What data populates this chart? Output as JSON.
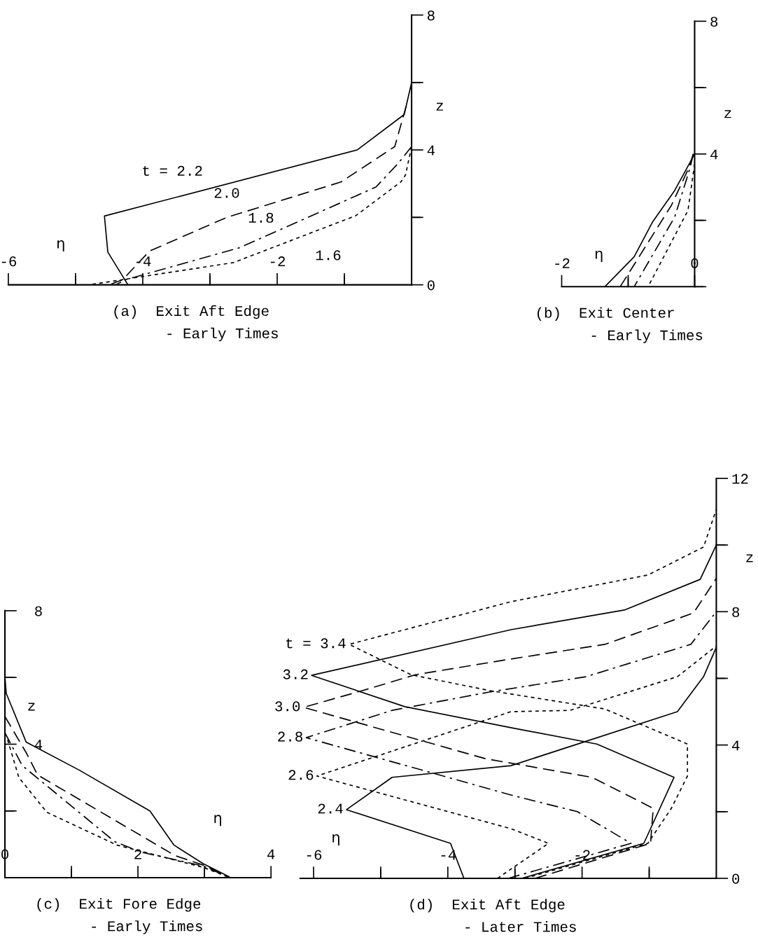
{
  "chart_data": [
    {
      "type": "line",
      "title": "(a)  Exit Aft Edge",
      "subtitle": "- Early Times",
      "xlabel": "η",
      "ylabel": "z",
      "xlim": [
        -6,
        0
      ],
      "xticks": [
        -6,
        {
          "value": -5,
          "label": null
        },
        -4,
        {
          "value": -3,
          "label": null
        },
        -2,
        {
          "value": -1,
          "label": null
        }
      ],
      "ylim": [
        0,
        8
      ],
      "yticks": [
        0,
        {
          "value": 2,
          "label": null
        },
        4,
        {
          "value": 6,
          "label": null
        },
        8
      ],
      "grid": false,
      "legend": false,
      "series": [
        {
          "color": "#000000",
          "line_style": "solid",
          "x": [
            0,
            -0.11,
            -0.81,
            -4.57,
            -4.52,
            -4.22
          ],
          "values": [
            6.0,
            5.05,
            4.0,
            2.04,
            0.97,
            0
          ]
        },
        {
          "color": "#000000",
          "line_style": "dashed",
          "x": [
            -0.08,
            -0.25,
            -1.05,
            -2.75,
            -3.9,
            -4.3,
            -4.5
          ],
          "values": [
            5.3,
            4.1,
            3.05,
            2.0,
            1.0,
            0.15,
            0
          ]
        },
        {
          "color": "#000000",
          "line_style": "dashdot",
          "x": [
            0,
            -0.2,
            -0.53,
            -2.56,
            -4.26,
            -4.4
          ],
          "values": [
            4.1,
            3.6,
            2.9,
            1.1,
            0.15,
            0
          ]
        },
        {
          "color": "#000000",
          "line_style": "dotted",
          "x": [
            0,
            -0.09,
            -0.16,
            -0.83,
            -2.65,
            -4.8
          ],
          "values": [
            4.1,
            3.26,
            3.05,
            2.05,
            0.66,
            0
          ]
        }
      ],
      "annotations": [
        {
          "text": "t = 2.2",
          "x": -3.56,
          "y": 2.57
        },
        {
          "text": "2.0",
          "x": -2.75,
          "y": 2.0
        },
        {
          "text": "1.8",
          "x": -2.24,
          "y": 1.38
        },
        {
          "text": "1.6",
          "x": -1.24,
          "y": 1.74
        }
      ]
    },
    {
      "type": "line",
      "title": "(b)  Exit Center",
      "subtitle": "- Early Times",
      "xlabel": "η",
      "ylabel": "z",
      "xlim": [
        -2,
        0
      ],
      "xticks": [
        -2,
        {
          "value": -1,
          "label": null
        },
        0
      ],
      "ylim": [
        0,
        8
      ],
      "yticks": [
        {
          "value": 0,
          "label": null
        },
        {
          "value": 2,
          "label": null
        },
        4,
        {
          "value": 6,
          "label": null
        },
        8
      ],
      "grid": false,
      "legend": false,
      "series": [
        {
          "color": "#000000",
          "line_style": "solid",
          "x": [
            0,
            -0.3,
            -0.63,
            -0.91,
            -1.35
          ],
          "values": [
            4.0,
            2.9,
            1.96,
            0.9,
            0
          ]
        },
        {
          "color": "#000000",
          "line_style": "dashed",
          "x": [
            -0.02,
            -0.09,
            -0.35,
            -0.88,
            -1.12
          ],
          "values": [
            4.0,
            3.57,
            2.45,
            0.76,
            0
          ]
        },
        {
          "color": "#000000",
          "line_style": "dashdot",
          "x": [
            -0.02,
            -0.07,
            -0.3,
            -0.91
          ],
          "values": [
            4.0,
            3.57,
            2.1,
            0
          ]
        },
        {
          "color": "#000000",
          "line_style": "dotted",
          "x": [
            0,
            -0.1,
            -0.7
          ],
          "values": [
            3.7,
            2.3,
            0
          ]
        }
      ]
    },
    {
      "type": "line",
      "title": "(c)  Exit Fore Edge",
      "subtitle": "- Early Times",
      "xlabel": "η",
      "ylabel": "z",
      "xlim": [
        0,
        4
      ],
      "xticks": [
        0,
        {
          "value": 1,
          "label": null
        },
        2,
        {
          "value": 3,
          "label": null
        },
        4
      ],
      "ylim": [
        0,
        8
      ],
      "yticks": [
        {
          "value": 0,
          "label": null
        },
        {
          "value": 2,
          "label": null
        },
        4,
        {
          "value": 6,
          "label": null
        },
        8
      ],
      "grid": false,
      "legend": false,
      "series": [
        {
          "color": "#000000",
          "line_style": "solid",
          "x": [
            0,
            0.02,
            0.32,
            1.12,
            2.18,
            2.54,
            2.98,
            3.37
          ],
          "values": [
            6.0,
            5.52,
            4.06,
            3.22,
            2.0,
            0.98,
            0.42,
            0.03
          ]
        },
        {
          "color": "#000000",
          "line_style": "dashed",
          "x": [
            0,
            0.33,
            0.49,
            2.56,
            3.02,
            3.37
          ],
          "values": [
            4.83,
            3.71,
            3.08,
            0.66,
            0.35,
            0.01
          ]
        },
        {
          "color": "#000000",
          "line_style": "dashdot",
          "x": [
            0,
            0.26,
            1.65,
            2.04,
            2.98,
            3.37
          ],
          "values": [
            4.34,
            3.36,
            1.08,
            0.77,
            0.35,
            0.01
          ]
        },
        {
          "color": "#000000",
          "line_style": "dotted",
          "x": [
            0.04,
            0.21,
            0.63,
            1.68,
            2.98,
            3.37
          ],
          "values": [
            4.13,
            3.0,
            1.96,
            0.98,
            0.31,
            0.01
          ]
        }
      ]
    },
    {
      "type": "line",
      "title": "(d)  Exit Aft Edge",
      "subtitle": "- Later Times",
      "xlabel": "η",
      "ylabel": "z",
      "xlim": [
        -6.2,
        0
      ],
      "xticks": [
        -6,
        {
          "value": -5,
          "label": null
        },
        -4,
        {
          "value": -3,
          "label": null
        },
        -2,
        {
          "value": -1,
          "label": null
        }
      ],
      "ylim": [
        0,
        12
      ],
      "yticks": [
        0,
        {
          "value": 2,
          "label": null
        },
        4,
        {
          "value": 6,
          "label": null
        },
        8,
        {
          "value": 10,
          "label": null
        },
        12
      ],
      "grid": false,
      "legend": false,
      "series": [
        {
          "color": "#000000",
          "line_style": "dotted",
          "x": [
            -2.85,
            -1.02,
            -0.67,
            -0.43,
            -0.43,
            -1.66,
            -3.37,
            -4.55,
            -5.47,
            -3.06,
            -1.02,
            -0.19,
            0
          ],
          "values": [
            0,
            1.05,
            2.1,
            3.07,
            4.03,
            5.08,
            5.63,
            6.11,
            7.02,
            8.3,
            9.1,
            9.94,
            11.07
          ]
        },
        {
          "color": "#000000",
          "line_style": "solid",
          "x": [
            -2.9,
            -1.08,
            -0.63,
            -1.78,
            -3.06,
            -4.64,
            -6.03,
            -3.06,
            -1.37,
            -0.24,
            0
          ],
          "values": [
            0,
            1.05,
            3.03,
            4.03,
            4.52,
            5.15,
            6.09,
            7.46,
            8.05,
            8.97,
            10.0
          ]
        },
        {
          "color": "#000000",
          "line_style": "dashed",
          "x": [
            -2.7,
            -0.98,
            -0.94,
            -1.85,
            -3.44,
            -6.15,
            -5.31,
            -4.48,
            -3.06,
            -1.66,
            -0.34,
            0
          ],
          "values": [
            0,
            1.05,
            2.1,
            3.03,
            3.59,
            5.13,
            5.61,
            6.11,
            6.58,
            7.02,
            7.96,
            9.0
          ]
        },
        {
          "color": "#000000",
          "line_style": "dashdot",
          "x": [
            -3.1,
            -1.27,
            -2.07,
            -3.06,
            -6.11,
            -4.83,
            -3.38,
            -1.94,
            -0.38,
            0
          ],
          "values": [
            0,
            1.05,
            2.0,
            2.5,
            4.22,
            5.04,
            5.59,
            6.05,
            7.02,
            8.0
          ]
        },
        {
          "color": "#000000",
          "line_style": "dotted",
          "x": [
            -3.26,
            -2.5,
            -3.06,
            -5.95,
            -3.06,
            -2.18,
            -0.58,
            0
          ],
          "values": [
            0,
            1.05,
            1.49,
            3.07,
            5.0,
            5.04,
            6.05,
            6.97
          ]
        },
        {
          "color": "#000000",
          "line_style": "solid",
          "x": [
            -3.76,
            -3.96,
            -5.51,
            -4.83,
            -3.06,
            -0.58,
            -0.19,
            0
          ],
          "values": [
            0,
            1.05,
            2.06,
            3.03,
            3.38,
            5.0,
            6.05,
            6.93
          ]
        }
      ],
      "annotations": [
        {
          "text": "t = 3.4",
          "x": -5.47,
          "y": 7.02
        },
        {
          "text": "3.2",
          "x": -6.03,
          "y": 6.09
        },
        {
          "text": "3.0",
          "x": -6.15,
          "y": 5.13
        },
        {
          "text": "2.8",
          "x": -6.11,
          "y": 4.22
        },
        {
          "text": "2.6",
          "x": -5.95,
          "y": 3.07
        },
        {
          "text": "2.4",
          "x": -5.51,
          "y": 2.06
        }
      ]
    }
  ]
}
